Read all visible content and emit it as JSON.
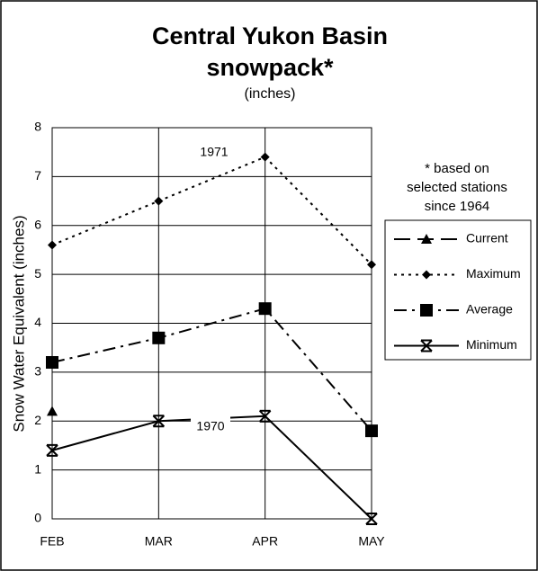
{
  "chart_data": {
    "type": "line",
    "title": "Central Yukon Basin",
    "title_line2": "snowpack*",
    "subtitle": "(inches)",
    "ylabel": "Snow Water Equivalent (inches)",
    "note": [
      "* based on",
      "selected stations",
      "since 1964"
    ],
    "annotations": [
      "1971",
      "1970"
    ],
    "categories": [
      "FEB",
      "MAR",
      "APR",
      "MAY"
    ],
    "series": [
      {
        "name": "Current",
        "color": "#000000",
        "values": [
          2.2,
          null,
          null,
          null
        ]
      },
      {
        "name": "Maximum",
        "color": "#000000",
        "values": [
          5.6,
          6.5,
          7.4,
          5.2
        ]
      },
      {
        "name": "Average",
        "color": "#000000",
        "values": [
          3.2,
          3.7,
          4.3,
          1.8
        ]
      },
      {
        "name": "Minimum",
        "color": "#000000",
        "values": [
          1.4,
          2.0,
          2.1,
          0
        ]
      }
    ],
    "ylim": [
      0,
      8
    ],
    "yticks": [
      0,
      1,
      2,
      3,
      4,
      5,
      6,
      7,
      8
    ],
    "grid": true
  }
}
